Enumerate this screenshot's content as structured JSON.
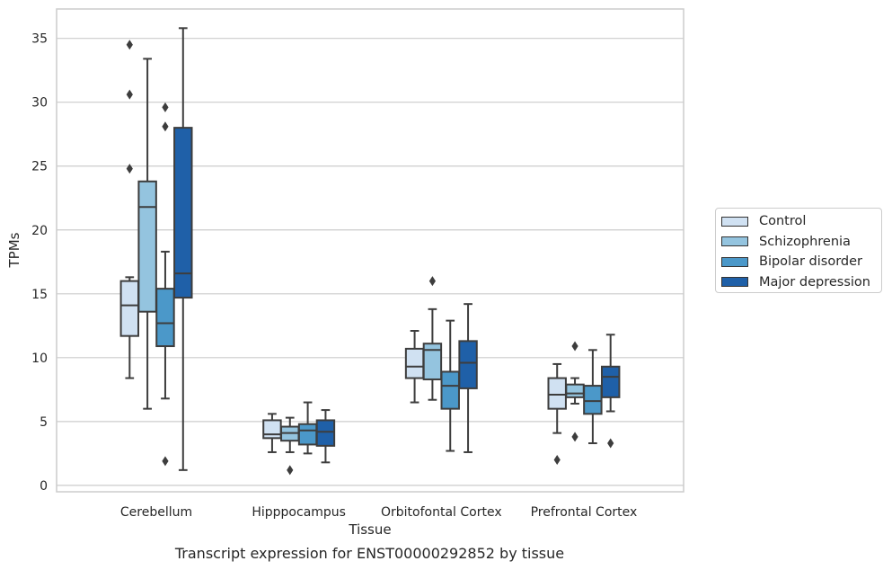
{
  "caption": "Transcript expression for ENST00000292852 by tissue",
  "chart_data": {
    "type": "box",
    "xlabel": "Tissue",
    "ylabel": "TPMs",
    "ylim": [
      -0.5,
      37.3
    ],
    "yticks": [
      0,
      5,
      10,
      15,
      20,
      25,
      30,
      35
    ],
    "grid": "horizontal",
    "legend_placement": "right",
    "categories": [
      "Cerebellum",
      "Hipppocampus",
      "Orbitofontal Cortex",
      "Prefrontal Cortex"
    ],
    "series": [
      {
        "name": "Control",
        "color": "#d0e1f2",
        "boxes": [
          {
            "whisker_low": 8.4,
            "q1": 11.7,
            "median": 14.1,
            "q3": 16.0,
            "whisker_high": 16.3,
            "outliers": [
              24.8,
              30.6,
              34.5
            ]
          },
          {
            "whisker_low": 2.6,
            "q1": 3.7,
            "median": 4.0,
            "q3": 5.1,
            "whisker_high": 5.6,
            "outliers": []
          },
          {
            "whisker_low": 6.5,
            "q1": 8.4,
            "median": 9.3,
            "q3": 10.7,
            "whisker_high": 12.1,
            "outliers": []
          },
          {
            "whisker_low": 4.1,
            "q1": 6.0,
            "median": 7.1,
            "q3": 8.4,
            "whisker_high": 9.5,
            "outliers": [
              2.0
            ]
          }
        ]
      },
      {
        "name": "Schizophrenia",
        "color": "#94c4df",
        "boxes": [
          {
            "whisker_low": 6.0,
            "q1": 13.6,
            "median": 21.8,
            "q3": 23.8,
            "whisker_high": 33.4,
            "outliers": []
          },
          {
            "whisker_low": 2.6,
            "q1": 3.5,
            "median": 4.1,
            "q3": 4.6,
            "whisker_high": 5.3,
            "outliers": [
              1.2
            ]
          },
          {
            "whisker_low": 6.7,
            "q1": 8.3,
            "median": 10.6,
            "q3": 11.1,
            "whisker_high": 13.8,
            "outliers": [
              16.0
            ]
          },
          {
            "whisker_low": 6.4,
            "q1": 6.9,
            "median": 7.2,
            "q3": 7.9,
            "whisker_high": 8.4,
            "outliers": [
              3.8,
              10.9
            ]
          }
        ]
      },
      {
        "name": "Bipolar disorder",
        "color": "#4b98c9",
        "boxes": [
          {
            "whisker_low": 6.8,
            "q1": 10.9,
            "median": 12.7,
            "q3": 15.4,
            "whisker_high": 18.3,
            "outliers": [
              1.9,
              28.1,
              29.6
            ]
          },
          {
            "whisker_low": 2.5,
            "q1": 3.2,
            "median": 4.3,
            "q3": 4.8,
            "whisker_high": 6.5,
            "outliers": []
          },
          {
            "whisker_low": 2.7,
            "q1": 6.0,
            "median": 7.8,
            "q3": 8.9,
            "whisker_high": 12.9,
            "outliers": []
          },
          {
            "whisker_low": 3.3,
            "q1": 5.6,
            "median": 6.6,
            "q3": 7.8,
            "whisker_high": 10.6,
            "outliers": []
          }
        ]
      },
      {
        "name": "Major depression",
        "color": "#1f60a8",
        "boxes": [
          {
            "whisker_low": 1.2,
            "q1": 14.7,
            "median": 16.6,
            "q3": 28.0,
            "whisker_high": 35.8,
            "outliers": []
          },
          {
            "whisker_low": 1.8,
            "q1": 3.1,
            "median": 4.2,
            "q3": 5.1,
            "whisker_high": 5.9,
            "outliers": []
          },
          {
            "whisker_low": 2.6,
            "q1": 7.6,
            "median": 9.6,
            "q3": 11.3,
            "whisker_high": 14.2,
            "outliers": []
          },
          {
            "whisker_low": 5.8,
            "q1": 6.9,
            "median": 8.5,
            "q3": 9.3,
            "whisker_high": 11.8,
            "outliers": [
              3.3
            ]
          }
        ]
      }
    ]
  }
}
